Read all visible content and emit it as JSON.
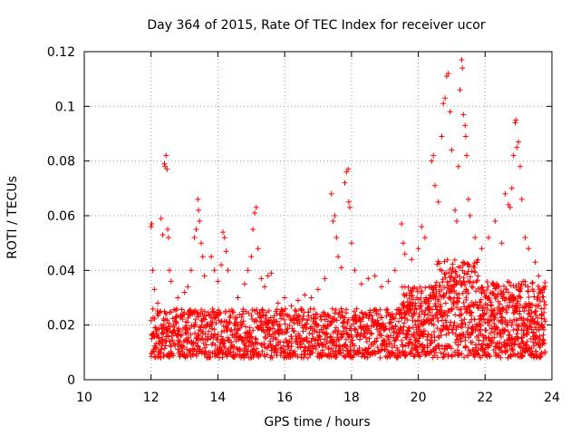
{
  "chart_data": {
    "type": "scatter",
    "title": "Day 364 of 2015, Rate Of TEC Index for receiver ucor",
    "xlabel": "GPS time / hours",
    "ylabel": "ROTI / TECUs",
    "xlim": [
      10,
      24
    ],
    "ylim": [
      0,
      0.12
    ],
    "xticks": [
      "10",
      "12",
      "14",
      "16",
      "18",
      "20",
      "22",
      "24"
    ],
    "yticks": [
      "0",
      "0.02",
      "0.04",
      "0.06",
      "0.08",
      "0.1",
      "0.12"
    ],
    "grid": true,
    "marker": "plus",
    "color": "#ff0000",
    "series": [
      {
        "name": "ROTI",
        "points": [
          [
            12.0,
            0.056
          ],
          [
            12.02,
            0.057
          ],
          [
            12.05,
            0.04
          ],
          [
            12.1,
            0.033
          ],
          [
            12.2,
            0.028
          ],
          [
            12.3,
            0.059
          ],
          [
            12.35,
            0.053
          ],
          [
            12.4,
            0.079
          ],
          [
            12.42,
            0.078
          ],
          [
            12.45,
            0.082
          ],
          [
            12.48,
            0.077
          ],
          [
            12.5,
            0.055
          ],
          [
            12.52,
            0.052
          ],
          [
            12.55,
            0.04
          ],
          [
            12.6,
            0.036
          ],
          [
            12.8,
            0.03
          ],
          [
            13.0,
            0.032
          ],
          [
            13.1,
            0.034
          ],
          [
            13.2,
            0.04
          ],
          [
            13.3,
            0.052
          ],
          [
            13.35,
            0.055
          ],
          [
            13.4,
            0.066
          ],
          [
            13.42,
            0.062
          ],
          [
            13.45,
            0.058
          ],
          [
            13.5,
            0.05
          ],
          [
            13.55,
            0.045
          ],
          [
            13.6,
            0.038
          ],
          [
            13.8,
            0.045
          ],
          [
            13.9,
            0.04
          ],
          [
            14.0,
            0.036
          ],
          [
            14.1,
            0.042
          ],
          [
            14.15,
            0.054
          ],
          [
            14.2,
            0.052
          ],
          [
            14.25,
            0.047
          ],
          [
            14.3,
            0.04
          ],
          [
            14.6,
            0.03
          ],
          [
            14.8,
            0.035
          ],
          [
            14.9,
            0.04
          ],
          [
            15.0,
            0.045
          ],
          [
            15.05,
            0.055
          ],
          [
            15.1,
            0.061
          ],
          [
            15.15,
            0.063
          ],
          [
            15.2,
            0.048
          ],
          [
            15.3,
            0.037
          ],
          [
            15.4,
            0.034
          ],
          [
            15.5,
            0.038
          ],
          [
            15.6,
            0.039
          ],
          [
            15.8,
            0.028
          ],
          [
            16.0,
            0.03
          ],
          [
            16.2,
            0.027
          ],
          [
            16.4,
            0.029
          ],
          [
            16.6,
            0.031
          ],
          [
            16.8,
            0.03
          ],
          [
            17.0,
            0.033
          ],
          [
            17.2,
            0.037
          ],
          [
            17.4,
            0.068
          ],
          [
            17.45,
            0.058
          ],
          [
            17.5,
            0.06
          ],
          [
            17.55,
            0.052
          ],
          [
            17.6,
            0.045
          ],
          [
            17.7,
            0.041
          ],
          [
            17.8,
            0.072
          ],
          [
            17.85,
            0.076
          ],
          [
            17.9,
            0.077
          ],
          [
            17.92,
            0.065
          ],
          [
            17.95,
            0.063
          ],
          [
            18.0,
            0.05
          ],
          [
            18.1,
            0.04
          ],
          [
            18.3,
            0.035
          ],
          [
            18.5,
            0.037
          ],
          [
            18.7,
            0.038
          ],
          [
            18.9,
            0.034
          ],
          [
            19.1,
            0.036
          ],
          [
            19.3,
            0.04
          ],
          [
            19.5,
            0.057
          ],
          [
            19.55,
            0.05
          ],
          [
            19.6,
            0.046
          ],
          [
            19.8,
            0.044
          ],
          [
            20.0,
            0.048
          ],
          [
            20.1,
            0.056
          ],
          [
            20.2,
            0.052
          ],
          [
            20.4,
            0.08
          ],
          [
            20.45,
            0.082
          ],
          [
            20.5,
            0.071
          ],
          [
            20.6,
            0.065
          ],
          [
            20.7,
            0.089
          ],
          [
            20.75,
            0.101
          ],
          [
            20.8,
            0.103
          ],
          [
            20.85,
            0.111
          ],
          [
            20.9,
            0.112
          ],
          [
            20.95,
            0.098
          ],
          [
            21.0,
            0.084
          ],
          [
            21.1,
            0.062
          ],
          [
            21.15,
            0.058
          ],
          [
            21.2,
            0.078
          ],
          [
            21.25,
            0.106
          ],
          [
            21.3,
            0.117
          ],
          [
            21.32,
            0.114
          ],
          [
            21.35,
            0.097
          ],
          [
            21.4,
            0.093
          ],
          [
            21.42,
            0.089
          ],
          [
            21.45,
            0.082
          ],
          [
            21.5,
            0.066
          ],
          [
            21.55,
            0.06
          ],
          [
            21.7,
            0.052
          ],
          [
            21.9,
            0.048
          ],
          [
            22.1,
            0.052
          ],
          [
            22.3,
            0.058
          ],
          [
            22.5,
            0.05
          ],
          [
            22.6,
            0.068
          ],
          [
            22.7,
            0.064
          ],
          [
            22.75,
            0.063
          ],
          [
            22.8,
            0.07
          ],
          [
            22.85,
            0.082
          ],
          [
            22.9,
            0.094
          ],
          [
            22.92,
            0.095
          ],
          [
            22.95,
            0.085
          ],
          [
            23.0,
            0.087
          ],
          [
            23.05,
            0.078
          ],
          [
            23.1,
            0.066
          ],
          [
            23.2,
            0.052
          ],
          [
            23.3,
            0.048
          ],
          [
            23.5,
            0.043
          ],
          [
            23.6,
            0.038
          ],
          [
            23.7,
            0.033
          ]
        ]
      }
    ]
  }
}
